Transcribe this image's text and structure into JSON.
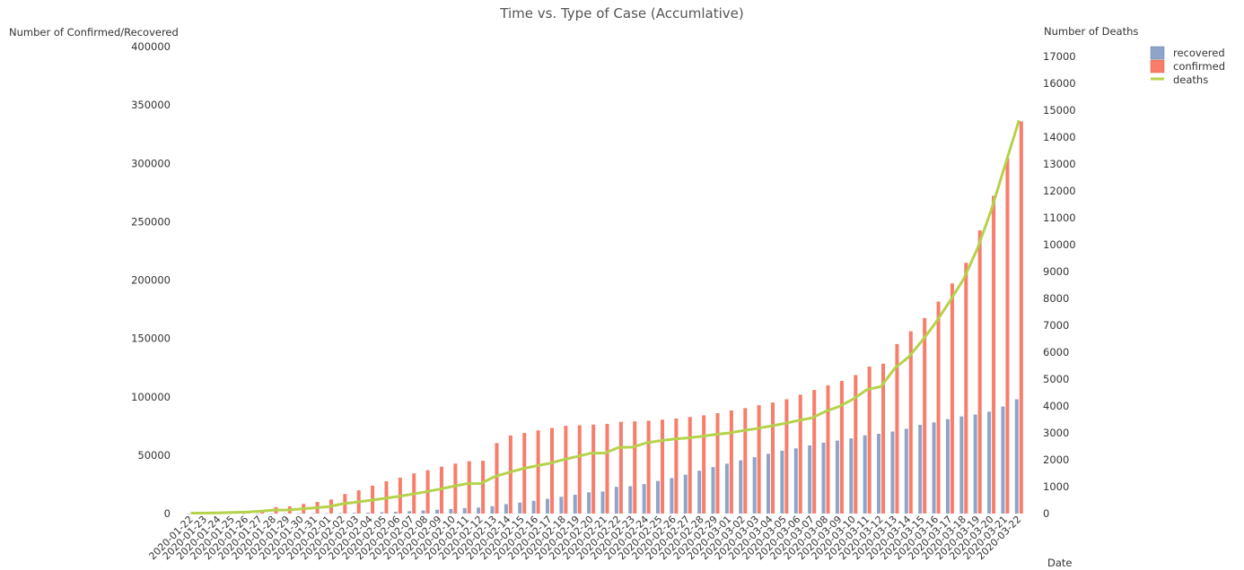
{
  "chart_data": {
    "type": "bar",
    "title": "Time vs. Type of Case (Accumlative)",
    "xlabel": "Date",
    "ylabel": "Number of Confirmed/Recovered",
    "y2label": "Number of Deaths",
    "ylim": [
      0,
      400000
    ],
    "y2lim": [
      0,
      17000
    ],
    "yticks": [
      0,
      50000,
      100000,
      150000,
      200000,
      250000,
      300000,
      350000,
      400000
    ],
    "y2ticks": [
      0,
      1000,
      2000,
      3000,
      4000,
      5000,
      6000,
      7000,
      8000,
      9000,
      10000,
      11000,
      12000,
      13000,
      14000,
      15000,
      16000,
      17000
    ],
    "grid": false,
    "legend_position": "top-right",
    "categories": [
      "2020-01-22",
      "2020-01-23",
      "2020-01-24",
      "2020-01-25",
      "2020-01-26",
      "2020-01-27",
      "2020-01-28",
      "2020-01-29",
      "2020-01-30",
      "2020-01-31",
      "2020-02-01",
      "2020-02-02",
      "2020-02-03",
      "2020-02-04",
      "2020-02-05",
      "2020-02-06",
      "2020-02-07",
      "2020-02-08",
      "2020-02-09",
      "2020-02-10",
      "2020-02-11",
      "2020-02-12",
      "2020-02-13",
      "2020-02-14",
      "2020-02-15",
      "2020-02-16",
      "2020-02-17",
      "2020-02-18",
      "2020-02-19",
      "2020-02-20",
      "2020-02-21",
      "2020-02-22",
      "2020-02-23",
      "2020-02-24",
      "2020-02-25",
      "2020-02-26",
      "2020-02-27",
      "2020-02-28",
      "2020-02-29",
      "2020-03-01",
      "2020-03-02",
      "2020-03-03",
      "2020-03-04",
      "2020-03-05",
      "2020-03-06",
      "2020-03-07",
      "2020-03-08",
      "2020-03-09",
      "2020-03-10",
      "2020-03-11",
      "2020-03-12",
      "2020-03-13",
      "2020-03-14",
      "2020-03-15",
      "2020-03-16",
      "2020-03-17",
      "2020-03-18",
      "2020-03-19",
      "2020-03-20",
      "2020-03-21",
      "2020-03-22"
    ],
    "series": [
      {
        "name": "recovered",
        "type": "bar",
        "axis": "left",
        "color": "#8EA4C8",
        "values": [
          28,
          30,
          36,
          39,
          52,
          61,
          107,
          126,
          143,
          222,
          284,
          472,
          623,
          852,
          1124,
          1487,
          2011,
          2616,
          3244,
          3946,
          4683,
          5150,
          6295,
          8058,
          9395,
          10865,
          12583,
          14352,
          16121,
          18177,
          18890,
          22886,
          23394,
          25227,
          27905,
          30384,
          33277,
          36711,
          39782,
          42716,
          45602,
          48228,
          51170,
          53796,
          55865,
          58358,
          60694,
          62494,
          64404,
          67003,
          68324,
          70251,
          72624,
          76034,
          78088,
          80840,
          83207,
          84854,
          87256,
          91676,
          97882
        ]
      },
      {
        "name": "confirmed",
        "type": "bar",
        "axis": "left",
        "color": "#F87D6B",
        "values": [
          555,
          654,
          941,
          1434,
          2118,
          2927,
          5578,
          6166,
          8234,
          9927,
          12038,
          16787,
          19881,
          23892,
          27635,
          30794,
          34391,
          37120,
          40150,
          42762,
          44802,
          45221,
          60368,
          66885,
          69030,
          71224,
          73258,
          75136,
          75639,
          76197,
          76819,
          78572,
          78958,
          79561,
          80406,
          81388,
          82746,
          84112,
          86011,
          88369,
          90306,
          92840,
          95120,
          97886,
          101801,
          105847,
          109821,
          113590,
          118620,
          125875,
          128352,
          145205,
          156101,
          167454,
          181574,
          197102,
          214821,
          242570,
          272208,
          304507,
          335955
        ]
      },
      {
        "name": "deaths",
        "type": "line",
        "axis": "right",
        "color": "#B5D24B",
        "values": [
          17,
          18,
          26,
          42,
          56,
          82,
          131,
          133,
          171,
          213,
          259,
          362,
          426,
          492,
          564,
          634,
          719,
          806,
          906,
          1013,
          1113,
          1118,
          1371,
          1523,
          1666,
          1770,
          1868,
          2007,
          2122,
          2247,
          2251,
          2458,
          2469,
          2629,
          2708,
          2770,
          2814,
          2872,
          2941,
          2996,
          3085,
          3160,
          3254,
          3348,
          3460,
          3558,
          3802,
          3988,
          4262,
          4615,
          4720,
          5404,
          5819,
          6440,
          7126,
          7905,
          8733,
          9867,
          11299,
          12973,
          14623
        ]
      }
    ]
  }
}
